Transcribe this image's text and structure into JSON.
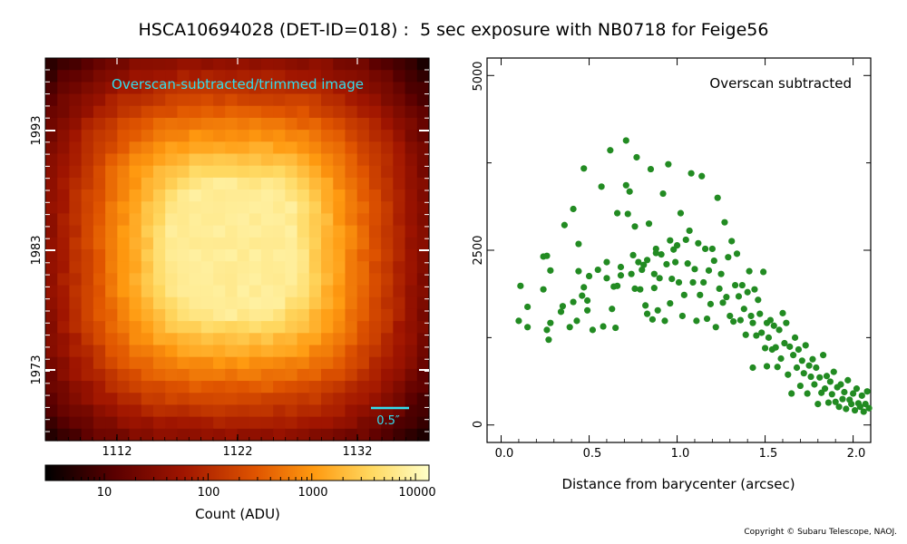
{
  "title": "HSCA10694028 (DET-ID=018) :  5 sec exposure with NB0718 for Feige56",
  "copyright": "Copyright © Subaru Telescope, NAOJ.",
  "colors": {
    "cmap": [
      "#000000",
      "#5a0000",
      "#a01500",
      "#e05500",
      "#ff9a10",
      "#ffd860",
      "#ffffc8"
    ],
    "points": "#228b22",
    "annot": "#33ddee"
  },
  "image_panel": {
    "annotation": "Overscan-subtracted/trimmed image",
    "scale_label": "0.5″",
    "x_ticks": [
      "1112",
      "1122",
      "1132"
    ],
    "y_ticks": [
      "1993",
      "1983",
      "1973"
    ]
  },
  "colorbar": {
    "scale": "log",
    "tick_labels": [
      "10",
      "100",
      "1000",
      "10000"
    ],
    "label": "Count (ADU)"
  },
  "chart_data": {
    "type": "scatter",
    "annotation": "Overscan subtracted",
    "xlabel": "Distance from barycenter (arcsec)",
    "ylabel": "",
    "xlim": [
      -0.08,
      2.1
    ],
    "ylim": [
      -250,
      5250
    ],
    "x_tick_labels": [
      "0.0",
      "0.5",
      "1.0",
      "1.5",
      "2.0"
    ],
    "y_tick_labels": [
      "0",
      "2500",
      "5000"
    ],
    "points": [
      [
        0.1,
        1490
      ],
      [
        0.11,
        1990
      ],
      [
        0.15,
        1400
      ],
      [
        0.15,
        1690
      ],
      [
        0.24,
        1940
      ],
      [
        0.24,
        2410
      ],
      [
        0.26,
        2420
      ],
      [
        0.26,
        1360
      ],
      [
        0.27,
        1220
      ],
      [
        0.28,
        1460
      ],
      [
        0.28,
        2210
      ],
      [
        0.34,
        1620
      ],
      [
        0.35,
        1700
      ],
      [
        0.36,
        2860
      ],
      [
        0.39,
        1400
      ],
      [
        0.41,
        3090
      ],
      [
        0.41,
        1760
      ],
      [
        0.43,
        1490
      ],
      [
        0.44,
        2590
      ],
      [
        0.44,
        2200
      ],
      [
        0.46,
        1850
      ],
      [
        0.47,
        3670
      ],
      [
        0.47,
        1970
      ],
      [
        0.49,
        1640
      ],
      [
        0.49,
        1780
      ],
      [
        0.5,
        2130
      ],
      [
        0.52,
        1360
      ],
      [
        0.55,
        2220
      ],
      [
        0.57,
        3410
      ],
      [
        0.58,
        1410
      ],
      [
        0.6,
        2330
      ],
      [
        0.6,
        2100
      ],
      [
        0.62,
        3930
      ],
      [
        0.63,
        1660
      ],
      [
        0.64,
        1980
      ],
      [
        0.65,
        1390
      ],
      [
        0.66,
        3030
      ],
      [
        0.66,
        1990
      ],
      [
        0.68,
        2260
      ],
      [
        0.68,
        2140
      ],
      [
        0.71,
        3430
      ],
      [
        0.71,
        4070
      ],
      [
        0.72,
        3020
      ],
      [
        0.73,
        3340
      ],
      [
        0.74,
        2160
      ],
      [
        0.75,
        2430
      ],
      [
        0.76,
        1950
      ],
      [
        0.76,
        2840
      ],
      [
        0.77,
        3830
      ],
      [
        0.78,
        2330
      ],
      [
        0.79,
        1940
      ],
      [
        0.8,
        2220
      ],
      [
        0.81,
        2290
      ],
      [
        0.82,
        1710
      ],
      [
        0.83,
        1590
      ],
      [
        0.83,
        2360
      ],
      [
        0.84,
        2880
      ],
      [
        0.85,
        3660
      ],
      [
        0.86,
        1510
      ],
      [
        0.87,
        1960
      ],
      [
        0.87,
        2160
      ],
      [
        0.88,
        2460
      ],
      [
        0.88,
        2520
      ],
      [
        0.89,
        1640
      ],
      [
        0.9,
        2100
      ],
      [
        0.91,
        2440
      ],
      [
        0.92,
        3310
      ],
      [
        0.93,
        1490
      ],
      [
        0.94,
        2300
      ],
      [
        0.95,
        3730
      ],
      [
        0.96,
        1740
      ],
      [
        0.96,
        2640
      ],
      [
        0.97,
        2090
      ],
      [
        0.98,
        2510
      ],
      [
        0.99,
        2330
      ],
      [
        1.0,
        2570
      ],
      [
        1.01,
        2040
      ],
      [
        1.02,
        3030
      ],
      [
        1.03,
        1560
      ],
      [
        1.04,
        1860
      ],
      [
        1.05,
        2650
      ],
      [
        1.06,
        2310
      ],
      [
        1.07,
        2780
      ],
      [
        1.08,
        3600
      ],
      [
        1.09,
        2040
      ],
      [
        1.1,
        2230
      ],
      [
        1.11,
        1490
      ],
      [
        1.12,
        2600
      ],
      [
        1.13,
        1860
      ],
      [
        1.14,
        3560
      ],
      [
        1.15,
        2040
      ],
      [
        1.16,
        2520
      ],
      [
        1.17,
        1520
      ],
      [
        1.18,
        2210
      ],
      [
        1.19,
        1730
      ],
      [
        1.2,
        2520
      ],
      [
        1.21,
        2350
      ],
      [
        1.22,
        1400
      ],
      [
        1.23,
        3250
      ],
      [
        1.24,
        1950
      ],
      [
        1.25,
        2160
      ],
      [
        1.26,
        1750
      ],
      [
        1.27,
        2900
      ],
      [
        1.28,
        1830
      ],
      [
        1.29,
        2400
      ],
      [
        1.3,
        1560
      ],
      [
        1.31,
        2630
      ],
      [
        1.32,
        1480
      ],
      [
        1.33,
        2000
      ],
      [
        1.34,
        2450
      ],
      [
        1.35,
        1840
      ],
      [
        1.36,
        1500
      ],
      [
        1.37,
        2000
      ],
      [
        1.38,
        1660
      ],
      [
        1.39,
        1290
      ],
      [
        1.4,
        1900
      ],
      [
        1.41,
        2200
      ],
      [
        1.42,
        1560
      ],
      [
        1.43,
        1460
      ],
      [
        1.43,
        820
      ],
      [
        1.44,
        1940
      ],
      [
        1.45,
        1280
      ],
      [
        1.46,
        1790
      ],
      [
        1.47,
        1590
      ],
      [
        1.48,
        1320
      ],
      [
        1.49,
        2190
      ],
      [
        1.5,
        1100
      ],
      [
        1.51,
        1460
      ],
      [
        1.51,
        840
      ],
      [
        1.52,
        1250
      ],
      [
        1.53,
        1500
      ],
      [
        1.54,
        1080
      ],
      [
        1.55,
        1420
      ],
      [
        1.56,
        1110
      ],
      [
        1.57,
        830
      ],
      [
        1.58,
        1360
      ],
      [
        1.59,
        950
      ],
      [
        1.6,
        1600
      ],
      [
        1.61,
        1170
      ],
      [
        1.62,
        1460
      ],
      [
        1.63,
        720
      ],
      [
        1.64,
        1120
      ],
      [
        1.65,
        450
      ],
      [
        1.66,
        1000
      ],
      [
        1.67,
        1250
      ],
      [
        1.68,
        820
      ],
      [
        1.69,
        1080
      ],
      [
        1.7,
        560
      ],
      [
        1.71,
        920
      ],
      [
        1.72,
        740
      ],
      [
        1.73,
        1140
      ],
      [
        1.74,
        450
      ],
      [
        1.75,
        850
      ],
      [
        1.76,
        690
      ],
      [
        1.77,
        940
      ],
      [
        1.78,
        580
      ],
      [
        1.79,
        820
      ],
      [
        1.8,
        300
      ],
      [
        1.81,
        680
      ],
      [
        1.82,
        460
      ],
      [
        1.83,
        1000
      ],
      [
        1.84,
        520
      ],
      [
        1.85,
        700
      ],
      [
        1.86,
        320
      ],
      [
        1.87,
        620
      ],
      [
        1.88,
        440
      ],
      [
        1.89,
        760
      ],
      [
        1.9,
        330
      ],
      [
        1.91,
        540
      ],
      [
        1.92,
        260
      ],
      [
        1.93,
        580
      ],
      [
        1.94,
        370
      ],
      [
        1.95,
        470
      ],
      [
        1.96,
        230
      ],
      [
        1.97,
        640
      ],
      [
        1.98,
        360
      ],
      [
        1.99,
        300
      ],
      [
        2.0,
        450
      ],
      [
        2.01,
        210
      ],
      [
        2.02,
        520
      ],
      [
        2.03,
        310
      ],
      [
        2.04,
        260
      ],
      [
        2.05,
        420
      ],
      [
        2.06,
        190
      ],
      [
        2.07,
        300
      ],
      [
        2.08,
        480
      ],
      [
        2.09,
        240
      ]
    ]
  }
}
